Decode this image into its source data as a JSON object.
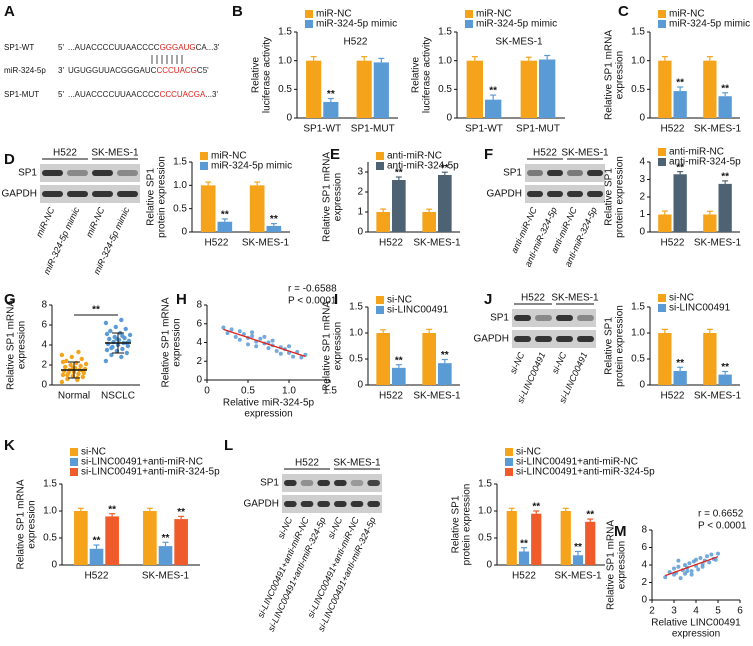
{
  "panel_labels": [
    "A",
    "B",
    "C",
    "D",
    "E",
    "F",
    "G",
    "H",
    "I",
    "J",
    "K",
    "L",
    "M"
  ],
  "sequences": [
    {
      "name": "SP1-WT",
      "end": "5'",
      "segments": [
        {
          "text": "...AUACCCCUUAACCCC",
          "color": "#222222"
        },
        {
          "text": "GGGAUG",
          "color": "#e0201b"
        },
        {
          "text": "CA...3'",
          "color": "#222222"
        }
      ]
    },
    {
      "name": "miR-324-5p",
      "end": "3'",
      "segments": [
        {
          "text": "UGUGGUUACGGGAUC",
          "color": "#222222"
        },
        {
          "text": "CCCUACG",
          "color": "#e0201b"
        },
        {
          "text": "C",
          "color": "#222222"
        },
        {
          "text": "5'",
          "color": "#222222"
        }
      ]
    },
    {
      "name": "SP1-MUT",
      "end": "5'",
      "segments": [
        {
          "text": "...AUACCCCUUAACCCC",
          "color": "#222222"
        },
        {
          "text": "CCCUACGA",
          "color": "#e0201b"
        },
        {
          "text": "...3'",
          "color": "#222222"
        }
      ]
    }
  ],
  "blots": [
    {
      "groups": [
        "H522",
        "SK-MES-1"
      ],
      "rows": [
        "SP1",
        "GAPDH"
      ],
      "lanes": [
        "miR-NC",
        "miR-324-5p mimic",
        "miR-NC",
        "miR-324-5p mimic"
      ]
    },
    {
      "groups": [
        "H522",
        "SK-MES-1"
      ],
      "rows": [
        "SP1",
        "GAPDH"
      ],
      "lanes": [
        "anti-miR-NC",
        "anti-miR-324-5p",
        "anti-miR-NC",
        "anti-miR-324-5p"
      ]
    },
    {
      "groups": [
        "H522",
        "SK-MES-1"
      ],
      "rows": [
        "SP1",
        "GAPDH"
      ],
      "lanes": [
        "si-NC",
        "si-LINC00491",
        "si-NC",
        "si-LINC00491"
      ]
    },
    {
      "groups": [
        "H522",
        "SK-MES-1"
      ],
      "rows": [
        "SP1",
        "GAPDH"
      ],
      "lanes": [
        "si-NC",
        "si-LINC00491+anti-miR-NC",
        "si-LINC00491+anti-miR-324-5p",
        "si-NC",
        "si-LINC00491+anti-miR-NC",
        "si-LINC00491+anti-miR-324-5p"
      ]
    }
  ],
  "chart_data": [
    {
      "type": "bar",
      "title": "H522",
      "ylabel": [
        "Relative",
        "luciferase activity"
      ],
      "categories": [
        "SP1-WT",
        "SP1-MUT"
      ],
      "ylim": [
        0,
        1.5
      ],
      "yticks": [
        0,
        0.5,
        {
          "value": 1,
          "label": "1.0"
        },
        1.5
      ],
      "series": [
        {
          "name": "miR-NC",
          "color": "#f5a31a",
          "values": [
            1,
            1
          ],
          "errors": [
            0.07,
            0.07
          ],
          "significance": [
            null,
            null
          ]
        },
        {
          "name": "miR-324-5p mimic",
          "color": "#5b9bd5",
          "values": [
            0.28,
            0.97
          ],
          "errors": [
            0.06,
            0.07
          ],
          "significance": [
            "**",
            null
          ]
        }
      ]
    },
    {
      "type": "bar",
      "title": "SK-MES-1",
      "ylabel": [
        "Relative",
        "luciferase activity"
      ],
      "categories": [
        "SP1-WT",
        "SP1-MUT"
      ],
      "ylim": [
        0,
        1.5
      ],
      "yticks": [
        0,
        0.5,
        {
          "value": 1,
          "label": "1.0"
        },
        1.5
      ],
      "series": [
        {
          "name": "miR-NC",
          "color": "#f5a31a",
          "values": [
            1,
            1
          ],
          "errors": [
            0.07,
            0.06
          ],
          "significance": [
            null,
            null
          ]
        },
        {
          "name": "miR-324-5p mimic",
          "color": "#5b9bd5",
          "values": [
            0.32,
            1.02
          ],
          "errors": [
            0.08,
            0.07
          ],
          "significance": [
            "**",
            null
          ]
        }
      ]
    },
    {
      "type": "bar",
      "ylabel": [
        "Relative SP1 mRNA",
        "expression"
      ],
      "categories": [
        "H522",
        "SK-MES-1"
      ],
      "ylim": [
        0,
        1.5
      ],
      "yticks": [
        0,
        0.5,
        {
          "value": 1,
          "label": "1.0"
        },
        1.5
      ],
      "series": [
        {
          "name": "miR-NC",
          "color": "#f5a31a",
          "values": [
            1,
            1
          ],
          "errors": [
            0.07,
            0.07
          ],
          "significance": [
            null,
            null
          ]
        },
        {
          "name": "miR-324-5p mimic",
          "color": "#5b9bd5",
          "values": [
            0.47,
            0.38
          ],
          "errors": [
            0.07,
            0.06
          ],
          "significance": [
            "**",
            "**"
          ]
        }
      ]
    },
    {
      "type": "bar",
      "ylabel": [
        "Relative SP1",
        "protein expression"
      ],
      "categories": [
        "H522",
        "SK-MES-1"
      ],
      "ylim": [
        0,
        1.5
      ],
      "yticks": [
        0,
        0.5,
        {
          "value": 1,
          "label": "1.0"
        },
        1.5
      ],
      "series": [
        {
          "name": "miR-NC",
          "color": "#f5a31a",
          "values": [
            1,
            1
          ],
          "errors": [
            0.07,
            0.07
          ],
          "significance": [
            null,
            null
          ]
        },
        {
          "name": "miR-324-5p mimic",
          "color": "#5b9bd5",
          "values": [
            0.22,
            0.13
          ],
          "errors": [
            0.06,
            0.05
          ],
          "significance": [
            "**",
            "**"
          ]
        }
      ]
    },
    {
      "type": "bar",
      "ylabel": [
        "Relative SP1 mRNA",
        "expression"
      ],
      "categories": [
        "H522",
        "SK-MES-1"
      ],
      "ylim": [
        0,
        3.5
      ],
      "yticks": [
        0,
        1,
        2,
        3
      ],
      "series": [
        {
          "name": "anti-miR-NC",
          "color": "#f5a31a",
          "values": [
            1,
            1
          ],
          "errors": [
            0.15,
            0.14
          ],
          "significance": [
            null,
            null
          ]
        },
        {
          "name": "anti-miR-324-5p",
          "color": "#4d6373",
          "values": [
            2.6,
            2.85
          ],
          "errors": [
            0.15,
            0.14
          ],
          "significance": [
            "**",
            "**"
          ]
        }
      ]
    },
    {
      "type": "bar",
      "ylabel": [
        "Relative SP1",
        "protein expression"
      ],
      "categories": [
        "H522",
        "SK-MES-1"
      ],
      "ylim": [
        0,
        4
      ],
      "yticks": [
        0,
        1,
        2,
        3,
        4
      ],
      "series": [
        {
          "name": "anti-miR-NC",
          "color": "#f5a31a",
          "values": [
            1,
            1
          ],
          "errors": [
            0.2,
            0.18
          ],
          "significance": [
            null,
            null
          ]
        },
        {
          "name": "anti-miR-324-5p",
          "color": "#4d6373",
          "values": [
            3.3,
            2.75
          ],
          "errors": [
            0.15,
            0.17
          ],
          "significance": [
            "**",
            "**"
          ]
        }
      ]
    },
    {
      "type": "strip",
      "ylabel": [
        "Relative SP1 mRNA",
        "expression"
      ],
      "categories": [
        "Normal",
        "NSCLC"
      ],
      "ylim": [
        0,
        8
      ],
      "yticks": [
        0,
        2,
        4,
        6,
        8
      ],
      "significance": "**",
      "groups": [
        {
          "color": "#f5a31a",
          "mean": 1.5,
          "sd": 0.8,
          "values": [
            0.3,
            0.5,
            0.6,
            0.8,
            0.9,
            1.0,
            1.1,
            1.2,
            1.2,
            1.3,
            1.4,
            1.5,
            1.5,
            1.6,
            1.7,
            1.8,
            1.9,
            2.0,
            2.1,
            2.2,
            2.4,
            2.6,
            2.8,
            3.0,
            0.7,
            1.0,
            1.4,
            1.7,
            2.3,
            3.3
          ]
        },
        {
          "color": "#5b9bd5",
          "mean": 4.2,
          "sd": 1.0,
          "values": [
            2.4,
            2.8,
            3.0,
            3.2,
            3.4,
            3.5,
            3.6,
            3.8,
            3.9,
            4.0,
            4.1,
            4.2,
            4.3,
            4.4,
            4.5,
            4.6,
            4.7,
            4.8,
            5.0,
            5.2,
            5.4,
            5.6,
            5.8,
            6.2,
            6.5,
            3.7,
            4.2,
            4.6,
            5.1,
            4.9
          ]
        }
      ]
    },
    {
      "type": "scatter",
      "annotations": [
        "r = -0.6588",
        "P < 0.0001"
      ],
      "xlabel": [
        "Relative miR-324-5p",
        "expression"
      ],
      "ylabel": [
        "Relative SP1 mRNA",
        "expression"
      ],
      "xlim": [
        0,
        1.5
      ],
      "xticks": [
        0,
        0.5,
        {
          "value": 1,
          "label": "1.0"
        },
        1.5
      ],
      "ylim": [
        0,
        8
      ],
      "yticks": [
        0,
        2,
        4,
        6,
        8
      ],
      "color": "#5b9bd5",
      "line_color": "#e0201b",
      "x": [
        0.2,
        0.25,
        0.3,
        0.35,
        0.4,
        0.4,
        0.45,
        0.5,
        0.5,
        0.55,
        0.6,
        0.6,
        0.65,
        0.7,
        0.7,
        0.75,
        0.8,
        0.8,
        0.85,
        0.9,
        0.9,
        0.95,
        1.0,
        1.0,
        1.05,
        1.1,
        1.15,
        1.2,
        0.55,
        0.75
      ],
      "values": [
        5.6,
        5.0,
        5.4,
        4.6,
        5.2,
        4.3,
        4.9,
        4.5,
        3.8,
        4.7,
        4.1,
        3.6,
        4.4,
        3.9,
        4.6,
        3.4,
        3.7,
        4.2,
        3.1,
        3.5,
        2.8,
        3.3,
        2.9,
        3.6,
        2.5,
        3.0,
        2.4,
        2.7,
        5.1,
        4.0
      ]
    },
    {
      "type": "bar",
      "ylabel": [
        "Relative SP1 mRNA",
        "expression"
      ],
      "categories": [
        "H522",
        "SK-MES-1"
      ],
      "ylim": [
        0,
        1.5
      ],
      "yticks": [
        0,
        0.5,
        {
          "value": 1,
          "label": "1.0"
        },
        1.5
      ],
      "series": [
        {
          "name": "si-NC",
          "color": "#f5a31a",
          "values": [
            1,
            1
          ],
          "errors": [
            0.06,
            0.07
          ],
          "significance": [
            null,
            null
          ]
        },
        {
          "name": "si-LINC00491",
          "color": "#5b9bd5",
          "values": [
            0.33,
            0.42
          ],
          "errors": [
            0.06,
            0.07
          ],
          "significance": [
            "**",
            "**"
          ]
        }
      ]
    },
    {
      "type": "bar",
      "ylabel": [
        "Relative SP1",
        "protein expression"
      ],
      "categories": [
        "H522",
        "SK-MES-1"
      ],
      "ylim": [
        0,
        1.5
      ],
      "yticks": [
        0,
        0.5,
        {
          "value": 1,
          "label": "1.0"
        },
        1.5
      ],
      "series": [
        {
          "name": "si-NC",
          "color": "#f5a31a",
          "values": [
            1,
            1
          ],
          "errors": [
            0.07,
            0.07
          ],
          "significance": [
            null,
            null
          ]
        },
        {
          "name": "si-LINC00491",
          "color": "#5b9bd5",
          "values": [
            0.27,
            0.2
          ],
          "errors": [
            0.07,
            0.06
          ],
          "significance": [
            "**",
            "**"
          ]
        }
      ]
    },
    {
      "type": "bar",
      "ylabel": [
        "Relative SP1 mRNA",
        "expression"
      ],
      "categories": [
        "H522",
        "SK-MES-1"
      ],
      "ylim": [
        0,
        1.5
      ],
      "yticks": [
        0,
        0.5,
        {
          "value": 1,
          "label": "1.0"
        },
        1.5
      ],
      "series": [
        {
          "name": "si-NC",
          "color": "#f5a31a",
          "values": [
            1,
            1
          ],
          "errors": [
            0.05,
            0.05
          ],
          "significance": [
            null,
            null
          ]
        },
        {
          "name": "si-LINC00491+anti-miR-NC",
          "color": "#5b9bd5",
          "values": [
            0.3,
            0.35
          ],
          "errors": [
            0.07,
            0.07
          ],
          "significance": [
            "**",
            "**"
          ]
        },
        {
          "name": "si-LINC00491+anti-miR-324-5p",
          "color": "#ef5b2a",
          "values": [
            0.9,
            0.85
          ],
          "errors": [
            0.05,
            0.05
          ],
          "significance": [
            "**",
            "**"
          ]
        }
      ]
    },
    {
      "type": "bar",
      "ylabel": [
        "Relative SP1",
        "protein expression"
      ],
      "categories": [
        "H522",
        "SK-MES-1"
      ],
      "ylim": [
        0,
        1.5
      ],
      "yticks": [
        0,
        0.5,
        {
          "value": 1,
          "label": "1.0"
        },
        1.5
      ],
      "series": [
        {
          "name": "si-NC",
          "color": "#f5a31a",
          "values": [
            1,
            1
          ],
          "errors": [
            0.05,
            0.05
          ],
          "significance": [
            null,
            null
          ]
        },
        {
          "name": "si-LINC00491+anti-miR-NC",
          "color": "#5b9bd5",
          "values": [
            0.25,
            0.18
          ],
          "errors": [
            0.07,
            0.07
          ],
          "significance": [
            "**",
            "**"
          ]
        },
        {
          "name": "si-LINC00491+anti-miR-324-5p",
          "color": "#ef5b2a",
          "values": [
            0.95,
            0.8
          ],
          "errors": [
            0.05,
            0.05
          ],
          "significance": [
            "**",
            "**"
          ]
        }
      ]
    },
    {
      "type": "scatter",
      "annotations": [
        "r = 0.6652",
        "P < 0.0001"
      ],
      "xlabel": [
        "Relative LINC00491",
        "expression"
      ],
      "ylabel": [
        "Relative SP1 mRNA",
        "expression"
      ],
      "xlim": [
        2,
        6
      ],
      "xticks": [
        2,
        3,
        4,
        5,
        6
      ],
      "ylim": [
        0,
        8
      ],
      "yticks": [
        0,
        2,
        4,
        6,
        8
      ],
      "color": "#5b9bd5",
      "line_color": "#e0201b",
      "x": [
        2.6,
        2.8,
        3.0,
        3.0,
        3.1,
        3.2,
        3.3,
        3.4,
        3.5,
        3.5,
        3.6,
        3.7,
        3.8,
        3.9,
        4.0,
        4.0,
        4.1,
        4.2,
        4.3,
        4.4,
        4.5,
        4.6,
        4.7,
        4.8,
        5.0,
        3.2,
        3.8,
        4.3,
        4.9,
        3.6
      ],
      "values": [
        2.6,
        3.2,
        2.9,
        3.6,
        3.1,
        3.8,
        2.5,
        3.4,
        4.0,
        3.0,
        3.7,
        4.2,
        3.3,
        4.4,
        3.9,
        4.6,
        3.5,
        4.8,
        4.1,
        4.5,
        5.0,
        4.3,
        5.2,
        4.7,
        5.3,
        4.5,
        2.9,
        3.8,
        4.6,
        3.3
      ]
    }
  ]
}
